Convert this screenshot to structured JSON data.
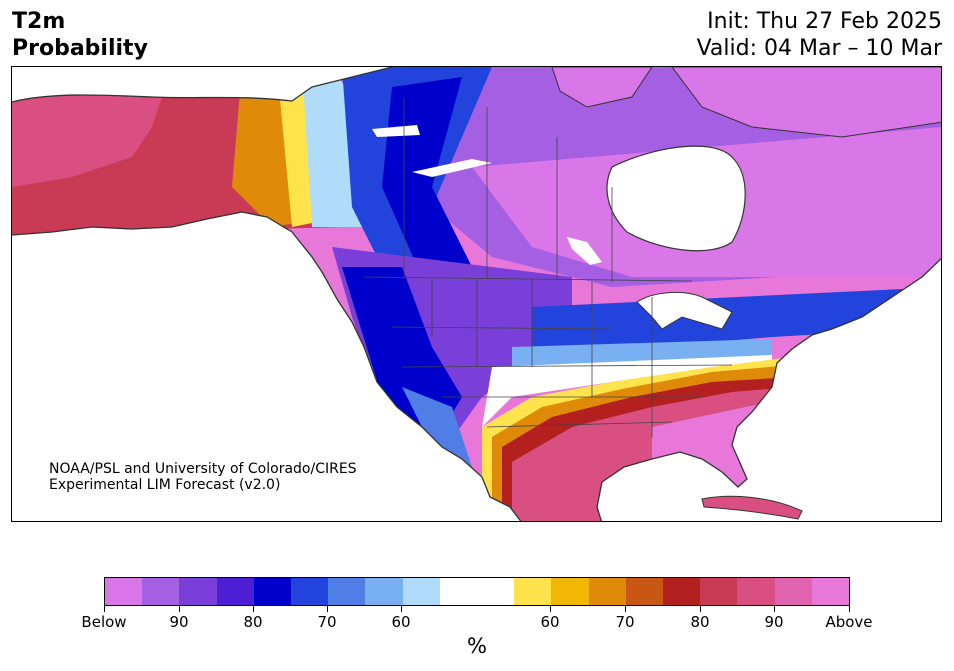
{
  "header": {
    "title_line1": "T2m",
    "title_line2": "Probability",
    "init": "Init: Thu 27 Feb 2025",
    "valid": "Valid: 04 Mar – 10 Mar"
  },
  "map": {
    "credit_line1": "NOAA/PSL and University of Colorado/CIRES",
    "credit_line2": "Experimental LIM Forecast (v2.0)"
  },
  "colorbar": {
    "colors": [
      "#d977e8",
      "#a55fe3",
      "#7b3fd9",
      "#4c1fd6",
      "#0000cd",
      "#2244dd",
      "#4f7fe6",
      "#79b0f2",
      "#b0dcfa",
      "#ffffff",
      "#ffffff",
      "#ffe34d",
      "#f2b705",
      "#e08a0a",
      "#c85614",
      "#b3201f",
      "#c93a55",
      "#d94f82",
      "#e063b0",
      "#e778da"
    ],
    "labels": [
      "Below",
      "90",
      "80",
      "70",
      "60",
      "60",
      "70",
      "80",
      "90",
      "Above"
    ],
    "unit": "%"
  },
  "palette": {
    "below_strong": "#d977e8",
    "below_mid": "#7b3fd9",
    "below_blue": "#0000cd",
    "near_normal": "#ffffff",
    "above_yellow": "#ffe34d",
    "above_red": "#b3201f",
    "above_strong": "#e778da",
    "land_outline": "#333333"
  }
}
